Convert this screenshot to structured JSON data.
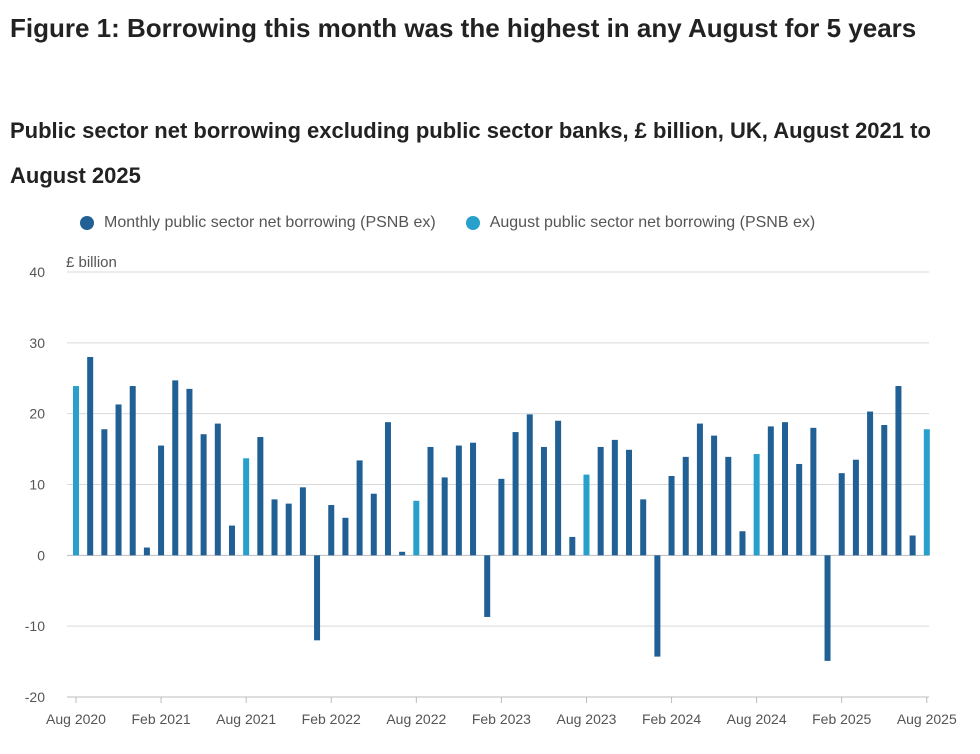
{
  "title": "Figure 1: Borrowing this month was the highest in any August for 5 years",
  "subtitle": "Public sector net borrowing excluding public sector banks, £ billion, UK, August 2021 to August 2025",
  "legend": {
    "monthly_label": "Monthly public sector net borrowing (PSNB ex)",
    "august_label": "August public sector net borrowing (PSNB ex)"
  },
  "colors": {
    "monthly": "#206095",
    "august": "#27a0cc",
    "grid": "#d9d9d9",
    "axis": "#bbbbbb"
  },
  "chart_data": {
    "type": "bar",
    "title": "Public sector net borrowing excluding public sector banks, £ billion, UK, August 2021 to August 2025",
    "ylabel": "£ billion",
    "xlabel": "",
    "ylim": [
      -20,
      40
    ],
    "yticks": [
      -20,
      -10,
      0,
      10,
      20,
      30,
      40
    ],
    "grid": true,
    "legend_position": "top",
    "series": [
      {
        "name": "Monthly public sector net borrowing (PSNB ex)",
        "values": [
          null,
          28,
          17.8,
          21.3,
          23.9,
          1.1,
          15.5,
          24.7,
          23.5,
          17.1,
          18.6,
          4.2,
          null,
          16.7,
          7.9,
          7.3,
          9.6,
          -12,
          7.1,
          5.3,
          13.4,
          8.7,
          18.8,
          0.5,
          null,
          15.3,
          11,
          15.5,
          15.9,
          -8.7,
          10.8,
          17.4,
          19.9,
          15.3,
          19,
          2.6,
          null,
          15.3,
          16.3,
          14.9,
          7.9,
          -14.3,
          11.2,
          13.9,
          18.6,
          16.9,
          13.9,
          3.4,
          null,
          18.2,
          18.8,
          12.9,
          18,
          -14.9,
          11.6,
          13.5,
          20.3,
          18.4,
          23.9,
          2.8,
          null
        ]
      },
      {
        "name": "August public sector net borrowing (PSNB ex)",
        "values": [
          23.9,
          null,
          null,
          null,
          null,
          null,
          null,
          null,
          null,
          null,
          null,
          null,
          13.7,
          null,
          null,
          null,
          null,
          null,
          null,
          null,
          null,
          null,
          null,
          null,
          7.7,
          null,
          null,
          null,
          null,
          null,
          null,
          null,
          null,
          null,
          null,
          null,
          11.4,
          null,
          null,
          null,
          null,
          null,
          null,
          null,
          null,
          null,
          null,
          null,
          14.3,
          null,
          null,
          null,
          null,
          null,
          null,
          null,
          null,
          null,
          null,
          null,
          17.8
        ]
      }
    ],
    "xtick_labels": [
      {
        "index": 0,
        "label": "Aug 2020"
      },
      {
        "index": 6,
        "label": "Feb 2021"
      },
      {
        "index": 12,
        "label": "Aug 2021"
      },
      {
        "index": 18,
        "label": "Feb 2022"
      },
      {
        "index": 24,
        "label": "Aug 2022"
      },
      {
        "index": 30,
        "label": "Feb 2023"
      },
      {
        "index": 36,
        "label": "Aug 2023"
      },
      {
        "index": 42,
        "label": "Feb 2024"
      },
      {
        "index": 48,
        "label": "Aug 2024"
      },
      {
        "index": 54,
        "label": "Feb 2025"
      },
      {
        "index": 60,
        "label": "Aug 2025"
      }
    ]
  }
}
